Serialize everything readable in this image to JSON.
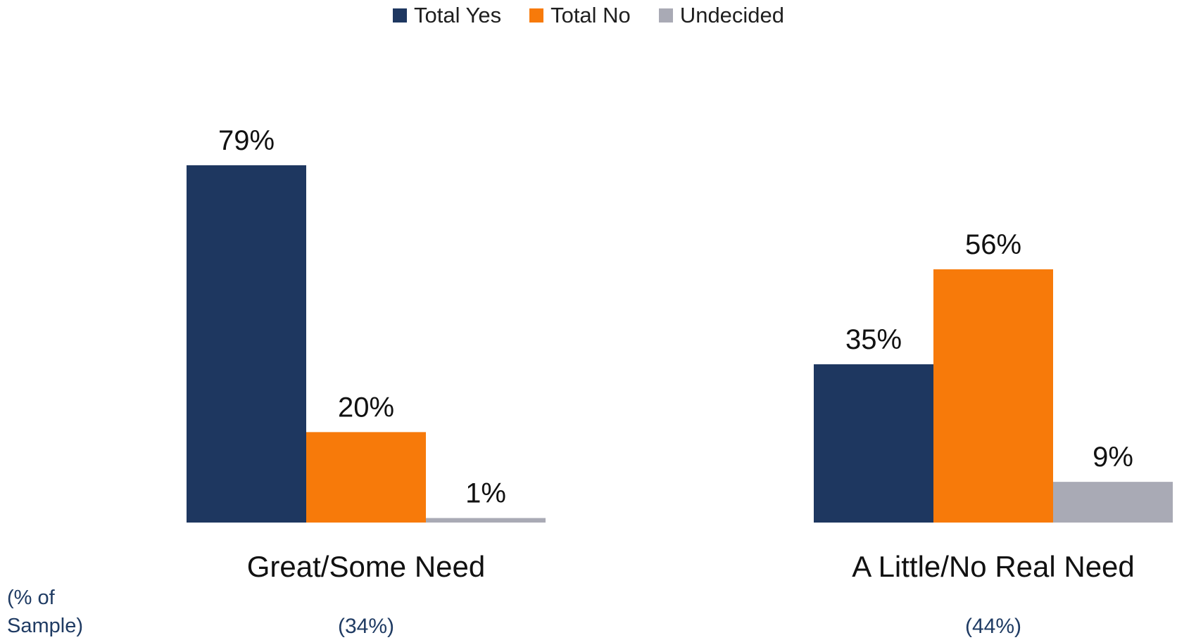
{
  "chart_data": {
    "type": "bar",
    "legend": {
      "placement": "top-center",
      "items": [
        {
          "label": "Total Yes",
          "color": "#1e3760"
        },
        {
          "label": "Total No",
          "color": "#f77a0a"
        },
        {
          "label": "Undecided",
          "color": "#a9aab5"
        }
      ]
    },
    "categories": [
      {
        "label": "Great/Some Need",
        "share": "(34%)"
      },
      {
        "label": "A Little/No Real Need",
        "share": "(44%)"
      }
    ],
    "series": [
      {
        "name": "Total Yes",
        "color": "#1e3760",
        "values": [
          79,
          35
        ],
        "labels": [
          "79%",
          "35%"
        ]
      },
      {
        "name": "Total No",
        "color": "#f77a0a",
        "values": [
          20,
          56
        ],
        "labels": [
          "20%",
          "56%"
        ]
      },
      {
        "name": "Undecided",
        "color": "#a9aab5",
        "values": [
          1,
          9
        ],
        "labels": [
          "1%",
          "9%"
        ]
      }
    ],
    "ylim": [
      0,
      79
    ],
    "grid": false,
    "sample_note": "(% of Sample)"
  }
}
